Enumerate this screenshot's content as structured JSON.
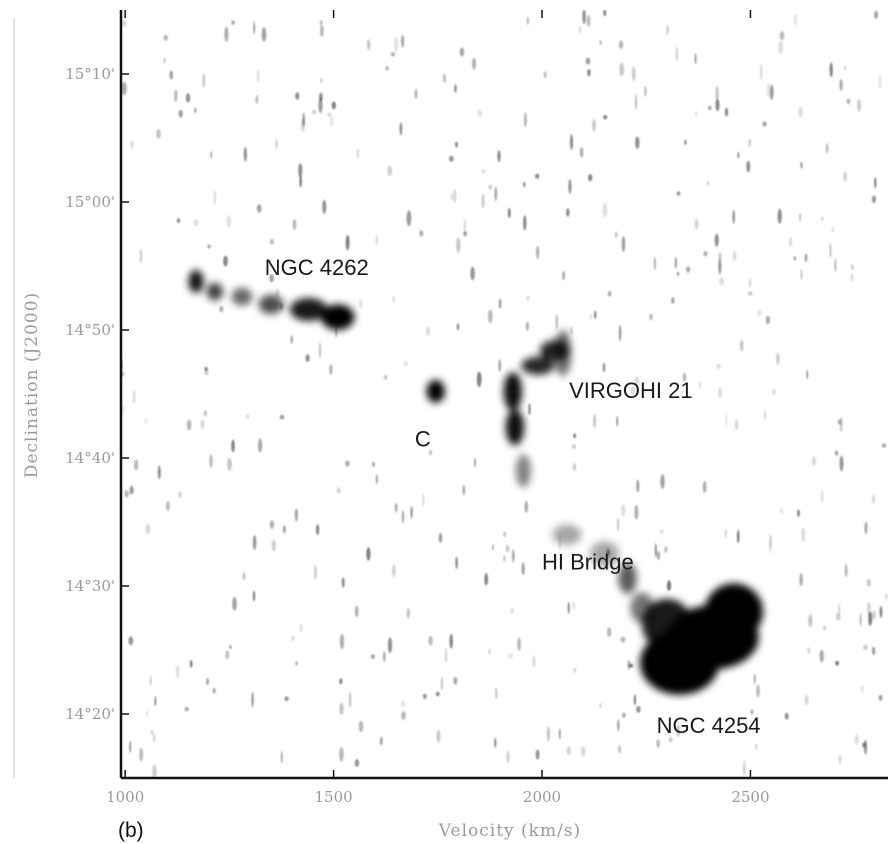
{
  "chart_data": {
    "type": "heatmap",
    "title": "",
    "panel_label": "(b)",
    "xlabel": "Velocity (km/s)",
    "ylabel": "Declination (J2000)",
    "xlim": [
      990,
      2830
    ],
    "ylim_arcmin": [
      855,
      915
    ],
    "x_ticks": [
      {
        "value": 1000,
        "label": "1000"
      },
      {
        "value": 1500,
        "label": "1500"
      },
      {
        "value": 2000,
        "label": "2000"
      },
      {
        "value": 2500,
        "label": "2500"
      }
    ],
    "y_ticks": [
      {
        "value": 910,
        "label": "15°10'"
      },
      {
        "value": 900,
        "label": "15°00'"
      },
      {
        "value": 890,
        "label": "14°50'"
      },
      {
        "value": 880,
        "label": "14°40'"
      },
      {
        "value": 870,
        "label": "14°30'"
      },
      {
        "value": 860,
        "label": "14°20'"
      }
    ],
    "grid": false,
    "colormap": [
      "#ffffff",
      "#000000"
    ],
    "emission_blobs": [
      {
        "x": 1170,
        "y": 893.8,
        "sx": 18,
        "sy": 0.9,
        "opacity": 0.95
      },
      {
        "x": 1215,
        "y": 893.0,
        "sx": 20,
        "sy": 0.7,
        "opacity": 0.75
      },
      {
        "x": 1280,
        "y": 892.6,
        "sx": 25,
        "sy": 0.7,
        "opacity": 0.6
      },
      {
        "x": 1350,
        "y": 892.0,
        "sx": 30,
        "sy": 0.75,
        "opacity": 0.7
      },
      {
        "x": 1440,
        "y": 891.6,
        "sx": 45,
        "sy": 0.9,
        "opacity": 0.9
      },
      {
        "x": 1510,
        "y": 891.0,
        "sx": 40,
        "sy": 1.0,
        "opacity": 1.0
      },
      {
        "x": 1745,
        "y": 885.2,
        "sx": 22,
        "sy": 0.9,
        "opacity": 1.0
      },
      {
        "x": 2030,
        "y": 888.4,
        "sx": 35,
        "sy": 0.8,
        "opacity": 0.85
      },
      {
        "x": 1990,
        "y": 887.2,
        "sx": 40,
        "sy": 0.7,
        "opacity": 0.85
      },
      {
        "x": 1930,
        "y": 885.2,
        "sx": 22,
        "sy": 1.5,
        "opacity": 0.95
      },
      {
        "x": 1935,
        "y": 882.4,
        "sx": 22,
        "sy": 1.4,
        "opacity": 0.95
      },
      {
        "x": 1955,
        "y": 879.0,
        "sx": 18,
        "sy": 1.3,
        "opacity": 0.5
      },
      {
        "x": 2050,
        "y": 888.2,
        "sx": 20,
        "sy": 1.8,
        "opacity": 0.6
      },
      {
        "x": 2060,
        "y": 874.0,
        "sx": 35,
        "sy": 0.8,
        "opacity": 0.35
      },
      {
        "x": 2150,
        "y": 872.5,
        "sx": 35,
        "sy": 1.0,
        "opacity": 0.35
      },
      {
        "x": 2205,
        "y": 870.6,
        "sx": 22,
        "sy": 1.2,
        "opacity": 0.65
      },
      {
        "x": 2240,
        "y": 868.3,
        "sx": 28,
        "sy": 1.2,
        "opacity": 0.55
      },
      {
        "x": 2410,
        "y": 866.0,
        "sx": 110,
        "sy": 2.5,
        "opacity": 1.0
      },
      {
        "x": 2330,
        "y": 864.0,
        "sx": 95,
        "sy": 2.5,
        "opacity": 1.0
      },
      {
        "x": 2460,
        "y": 868.0,
        "sx": 70,
        "sy": 2.2,
        "opacity": 1.0
      },
      {
        "x": 2300,
        "y": 867.0,
        "sx": 60,
        "sy": 2.0,
        "opacity": 0.9
      }
    ],
    "annotations": [
      {
        "text": "NGC 4262",
        "x": 1335,
        "y": 894.3
      },
      {
        "text": "C",
        "x": 1695,
        "y": 880.9
      },
      {
        "text": "VIRGOHI 21",
        "x": 2065,
        "y": 884.7
      },
      {
        "text": "HI Bridge",
        "x": 2000,
        "y": 871.3
      },
      {
        "text": "NGC 4254",
        "x": 2275,
        "y": 858.5
      }
    ]
  }
}
